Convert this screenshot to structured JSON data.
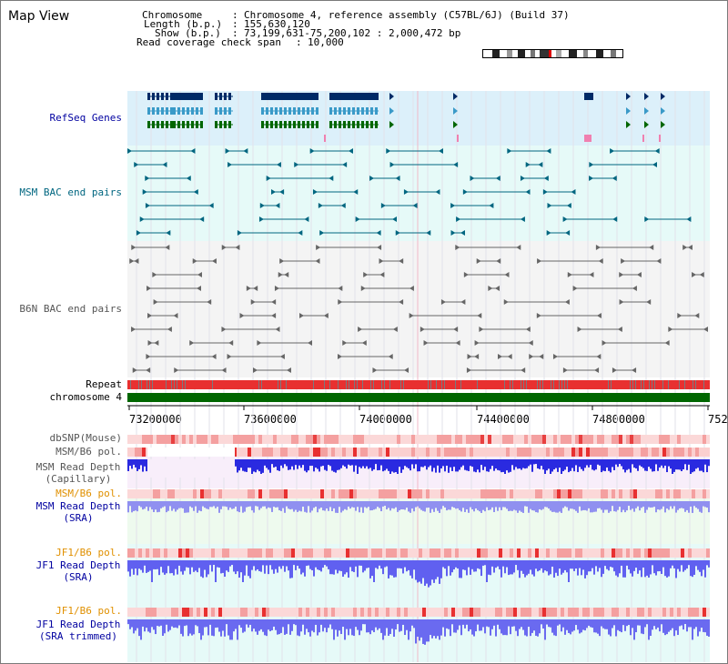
{
  "app_title": "Map View",
  "header": {
    "chromosome_key": "Chromosome",
    "chromosome_val": "Chromosome 4, reference assembly (C57BL/6J) (Build 37)",
    "length_key": "Length (b.p.)",
    "length_val": "155,630,120",
    "show_key": "Show (b.p.)",
    "show_val": "73,199,631-75,200,102 : 2,000,472 bp",
    "coverage_key": "Read coverage check span",
    "coverage_val": "10,000"
  },
  "tracks": {
    "refseq": "RefSeq Genes",
    "msm_bac": "MSM BAC end pairs",
    "b6n_bac": "B6N BAC end pairs",
    "repeat": "Repeat",
    "chromosome": "chromosome 4",
    "dbsnp": "dbSNP(Mouse)",
    "msm_pol1": "MSM/B6 pol.",
    "msm_depth_cap_1": "MSM Read Depth",
    "msm_depth_cap_2": "(Capillary)",
    "msm_pol2": "MSM/B6 pol.",
    "msm_depth_sra_1": "MSM Read Depth",
    "msm_depth_sra_2": "(SRA)",
    "jf1_pol1": "JF1/B6 pol.",
    "jf1_depth_sra_1": "JF1 Read Depth",
    "jf1_depth_sra_2": "(SRA)",
    "jf1_pol2": "JF1/B6 pol.",
    "jf1_depth_trim_1": "JF1 Read Depth",
    "jf1_depth_trim_2": "(SRA trimmed)"
  },
  "axis": {
    "ticks": [
      "73200000",
      "73600000",
      "74000000",
      "74400000",
      "74800000",
      "752"
    ]
  },
  "colors": {
    "refseq_bg": "#dcf0fa",
    "msm_bg": "#e6faf8",
    "b6n_bg": "#f4f4f4",
    "depth_cap_bg": "#f8eefa",
    "depth_sra_bg": "#eefaee",
    "jf1_bg": "#e6faf8",
    "repeat": "#e83030",
    "chromosome": "#006600",
    "label_blue": "#0000a0",
    "label_teal": "#006680",
    "label_gray": "#555555",
    "label_orange": "#e09000"
  }
}
